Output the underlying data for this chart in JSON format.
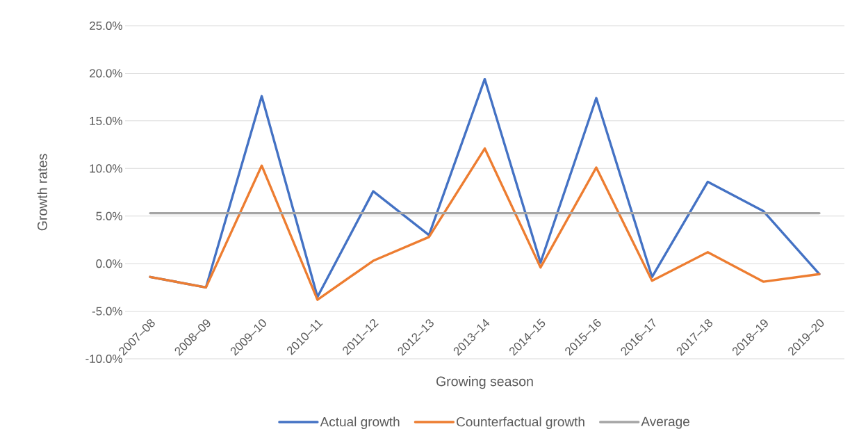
{
  "chart_data": {
    "type": "line",
    "xlabel": "Growing season",
    "ylabel": "Growth rates",
    "categories": [
      "2007–08",
      "2008–09",
      "2009–10",
      "2010–11",
      "2011–12",
      "2012–13",
      "2013–14",
      "2014–15",
      "2015–16",
      "2016–17",
      "2017–18",
      "2018–19",
      "2019–20"
    ],
    "series": [
      {
        "name": "Actual growth",
        "color": "#4472c4",
        "values": [
          -1.4,
          -2.5,
          17.6,
          -3.5,
          7.6,
          3.0,
          19.4,
          0.1,
          17.4,
          -1.4,
          8.6,
          5.5,
          -1.1
        ]
      },
      {
        "name": "Counterfactual growth",
        "color": "#ed7d31",
        "values": [
          -1.4,
          -2.5,
          10.3,
          -3.8,
          0.3,
          2.8,
          12.1,
          -0.4,
          10.1,
          -1.8,
          1.2,
          -1.9,
          -1.1
        ]
      },
      {
        "name": "Average",
        "color": "#a5a5a5",
        "values": [
          5.3,
          5.3,
          5.3,
          5.3,
          5.3,
          5.3,
          5.3,
          5.3,
          5.3,
          5.3,
          5.3,
          5.3,
          5.3
        ]
      }
    ],
    "ylim": [
      -10,
      25
    ],
    "yticks": [
      {
        "value": -10,
        "label": "-10.0%"
      },
      {
        "value": -5,
        "label": "-5.0%"
      },
      {
        "value": 0,
        "label": "0.0%"
      },
      {
        "value": 5,
        "label": "5.0%"
      },
      {
        "value": 10,
        "label": "10.0%"
      },
      {
        "value": 15,
        "label": "15.0%"
      },
      {
        "value": 20,
        "label": "20.0%"
      },
      {
        "value": 25,
        "label": "25.0%"
      }
    ],
    "grid": "y",
    "legend": "bottom",
    "marker": "none",
    "line_style": "solid"
  }
}
